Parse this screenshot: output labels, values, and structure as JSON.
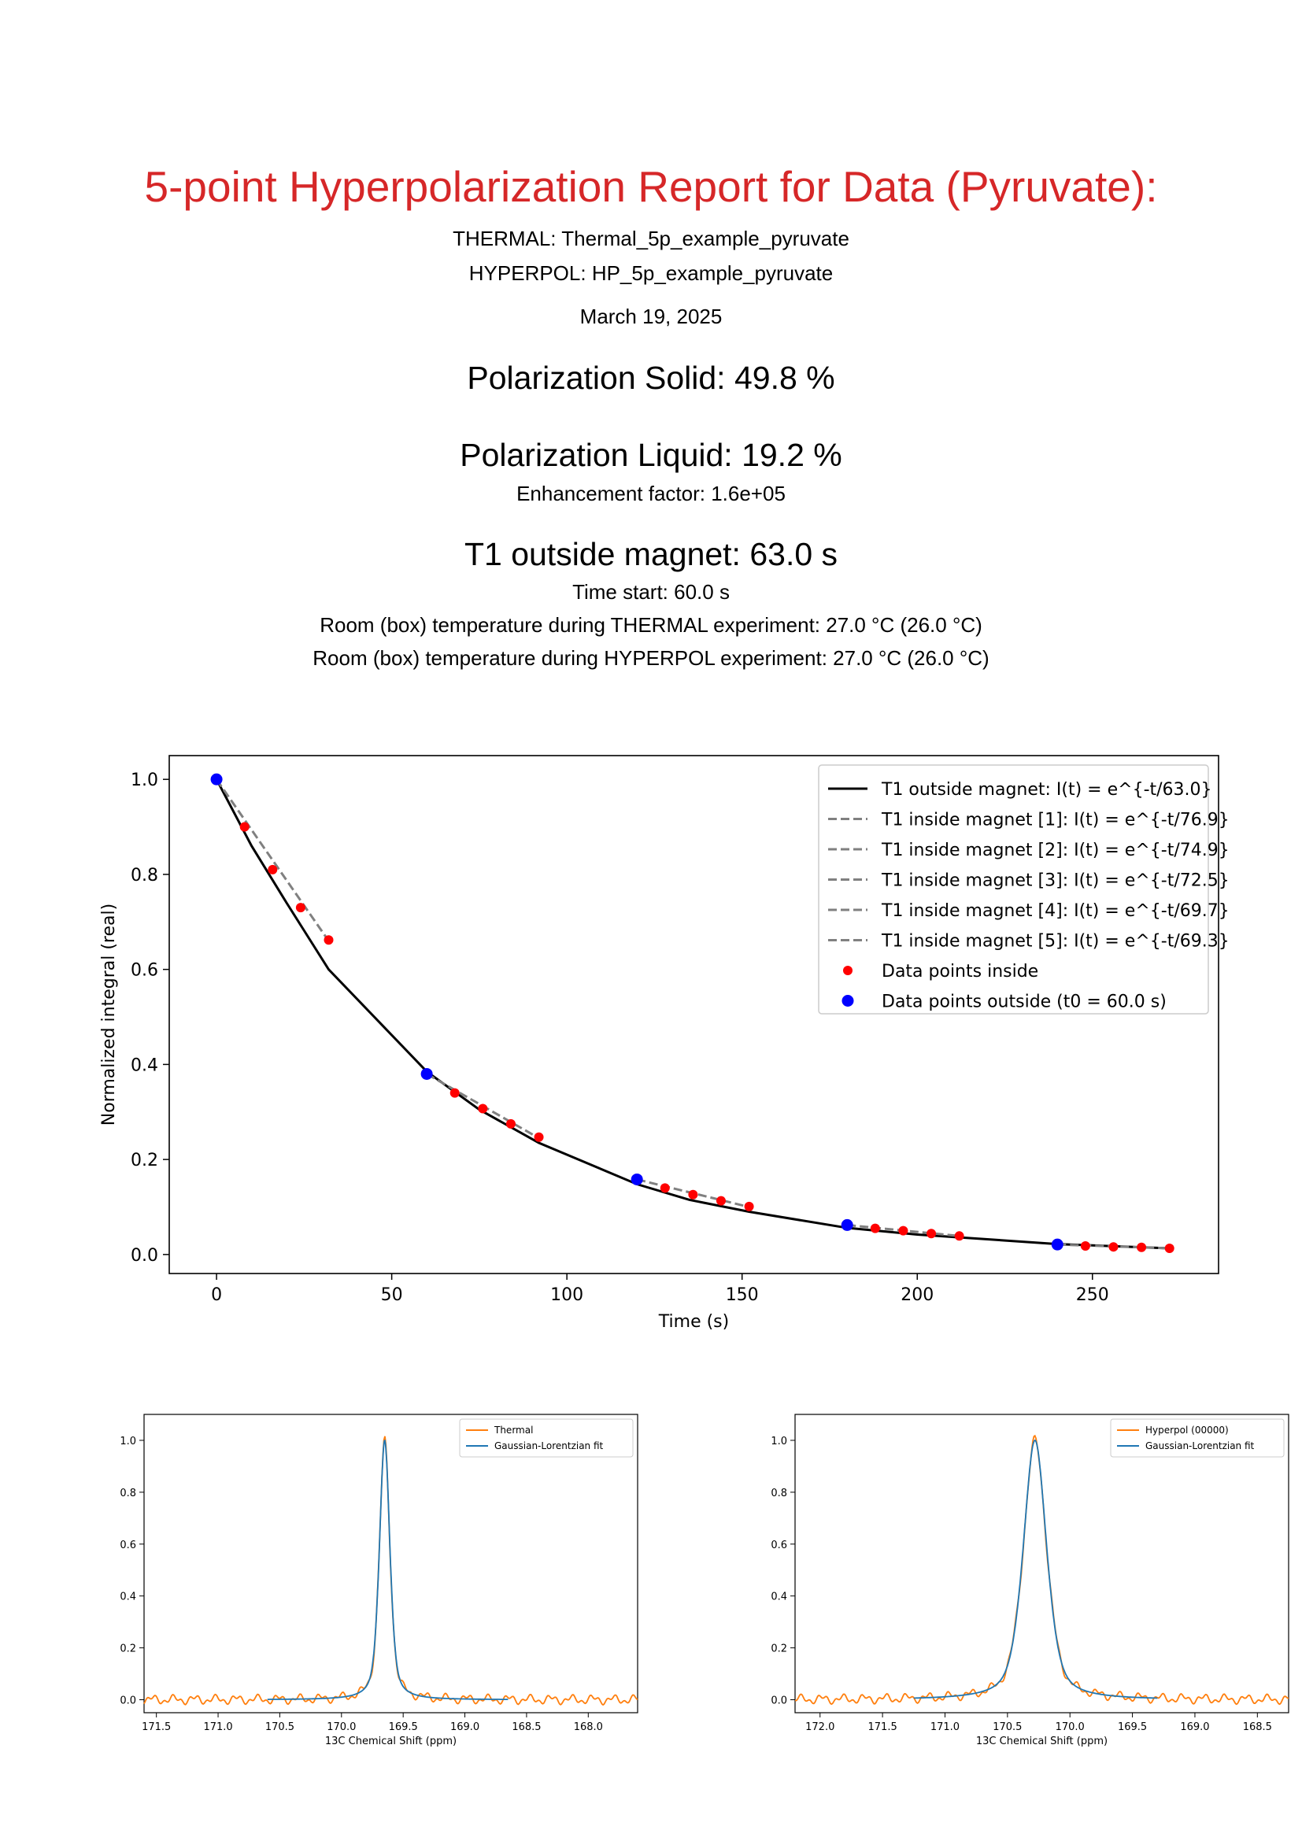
{
  "report": {
    "title": "5-point Hyperpolarization Report for Data (Pyruvate):",
    "thermal_line": "THERMAL:  Thermal_5p_example_pyruvate",
    "hyperpol_line": "HYPERPOL:  HP_5p_example_pyruvate",
    "date": "March 19, 2025",
    "polarization_solid": "Polarization Solid: 49.8 %",
    "polarization_liquid": "Polarization Liquid: 19.2 %",
    "enhancement": "Enhancement factor: 1.6e+05",
    "t1_outside": "T1 outside magnet: 63.0 s",
    "time_start": "Time start: 60.0 s",
    "temp_thermal": "Room (box) temperature during THERMAL experiment: 27.0 °C (26.0 °C)",
    "temp_hyperpol": "Room (box) temperature during HYPERPOL experiment: 27.0 °C (26.0 °C)"
  },
  "chart_data": [
    {
      "type": "line",
      "xlabel": "Time (s)",
      "ylabel": "Normalized integral (real)",
      "xlim": [
        -13.5,
        286
      ],
      "ylim": [
        -0.04,
        1.05
      ],
      "xticks": [
        0,
        50,
        100,
        150,
        200,
        250
      ],
      "yticks": [
        0.0,
        0.2,
        0.4,
        0.6,
        0.8,
        1.0
      ],
      "legend_position": "top-right",
      "colors": {
        "outside_line": "#000000",
        "inside_lines": "#808080",
        "inside_points": "#ff0000",
        "outside_points": "#0000ff"
      },
      "outside_fit": {
        "name": "T1 outside magnet: I(t) = e^{-t/63.0}",
        "x": [
          0,
          10,
          20,
          32,
          60,
          75,
          92,
          120,
          135,
          152,
          180,
          200,
          240,
          272
        ],
        "y": [
          1.0,
          0.86,
          0.74,
          0.6,
          0.385,
          0.305,
          0.235,
          0.148,
          0.115,
          0.09,
          0.056,
          0.042,
          0.022,
          0.013
        ]
      },
      "inside_fits": [
        {
          "name": "T1 inside magnet [1]: I(t) = e^{-t/76.9}",
          "x": [
            0,
            32
          ],
          "y": [
            1.0,
            0.66
          ]
        },
        {
          "name": "T1 inside magnet [2]: I(t) = e^{-t/74.9}",
          "x": [
            60,
            92
          ],
          "y": [
            0.38,
            0.245
          ]
        },
        {
          "name": "T1 inside magnet [3]: I(t) = e^{-t/72.5}",
          "x": [
            120,
            152
          ],
          "y": [
            0.158,
            0.1
          ]
        },
        {
          "name": "T1 inside magnet [4]: I(t) = e^{-t/69.7}",
          "x": [
            180,
            212
          ],
          "y": [
            0.062,
            0.039
          ]
        },
        {
          "name": "T1 inside magnet [5]: I(t) = e^{-t/69.3}",
          "x": [
            240,
            272
          ],
          "y": [
            0.021,
            0.013
          ]
        }
      ],
      "inside_points": {
        "name": "Data points inside",
        "x": [
          8,
          16,
          24,
          32,
          68,
          76,
          84,
          92,
          128,
          136,
          144,
          152,
          188,
          196,
          204,
          212,
          248,
          256,
          264,
          272
        ],
        "y": [
          0.9,
          0.81,
          0.73,
          0.662,
          0.34,
          0.307,
          0.275,
          0.247,
          0.14,
          0.126,
          0.113,
          0.101,
          0.055,
          0.05,
          0.044,
          0.039,
          0.018,
          0.016,
          0.015,
          0.013
        ]
      },
      "outside_points": {
        "name": "Data points outside (t0 = 60.0 s)",
        "x": [
          0,
          60,
          120,
          180,
          240
        ],
        "y": [
          1.0,
          0.38,
          0.158,
          0.062,
          0.021
        ]
      }
    },
    {
      "type": "line",
      "xlabel": "13C Chemical Shift (ppm)",
      "xlim": [
        171.6,
        167.6
      ],
      "ylim": [
        -0.05,
        1.1
      ],
      "xticks": [
        171.5,
        171.0,
        170.5,
        170.0,
        169.5,
        169.0,
        168.5,
        168.0
      ],
      "yticks": [
        0.0,
        0.2,
        0.4,
        0.6,
        0.8,
        1.0
      ],
      "reversed_x": true,
      "legend_position": "top-right",
      "series": [
        {
          "name": "Thermal",
          "color": "#ff7f0e",
          "peak_ppm": 169.65,
          "fwhm_ppm": 0.1,
          "x_range": [
            171.6,
            167.6
          ]
        },
        {
          "name": "Gaussian-Lorentzian fit",
          "color": "#1f77b4",
          "peak_ppm": 169.65,
          "fwhm_ppm": 0.1,
          "x_range": [
            170.6,
            168.65
          ]
        }
      ]
    },
    {
      "type": "line",
      "xlabel": "13C Chemical Shift (ppm)",
      "xlim": [
        172.2,
        168.25
      ],
      "ylim": [
        -0.05,
        1.1
      ],
      "xticks": [
        172.0,
        171.5,
        171.0,
        170.5,
        170.0,
        169.5,
        169.0,
        168.5
      ],
      "yticks": [
        0.0,
        0.2,
        0.4,
        0.6,
        0.8,
        1.0
      ],
      "reversed_x": true,
      "legend_position": "top-right",
      "series": [
        {
          "name": "Hyperpol (00000)",
          "color": "#ff7f0e",
          "peak_ppm": 170.28,
          "fwhm_ppm": 0.22,
          "x_range": [
            172.2,
            168.25
          ]
        },
        {
          "name": "Gaussian-Lorentzian fit",
          "color": "#1f77b4",
          "peak_ppm": 170.28,
          "fwhm_ppm": 0.22,
          "x_range": [
            171.25,
            169.3
          ]
        }
      ]
    }
  ]
}
